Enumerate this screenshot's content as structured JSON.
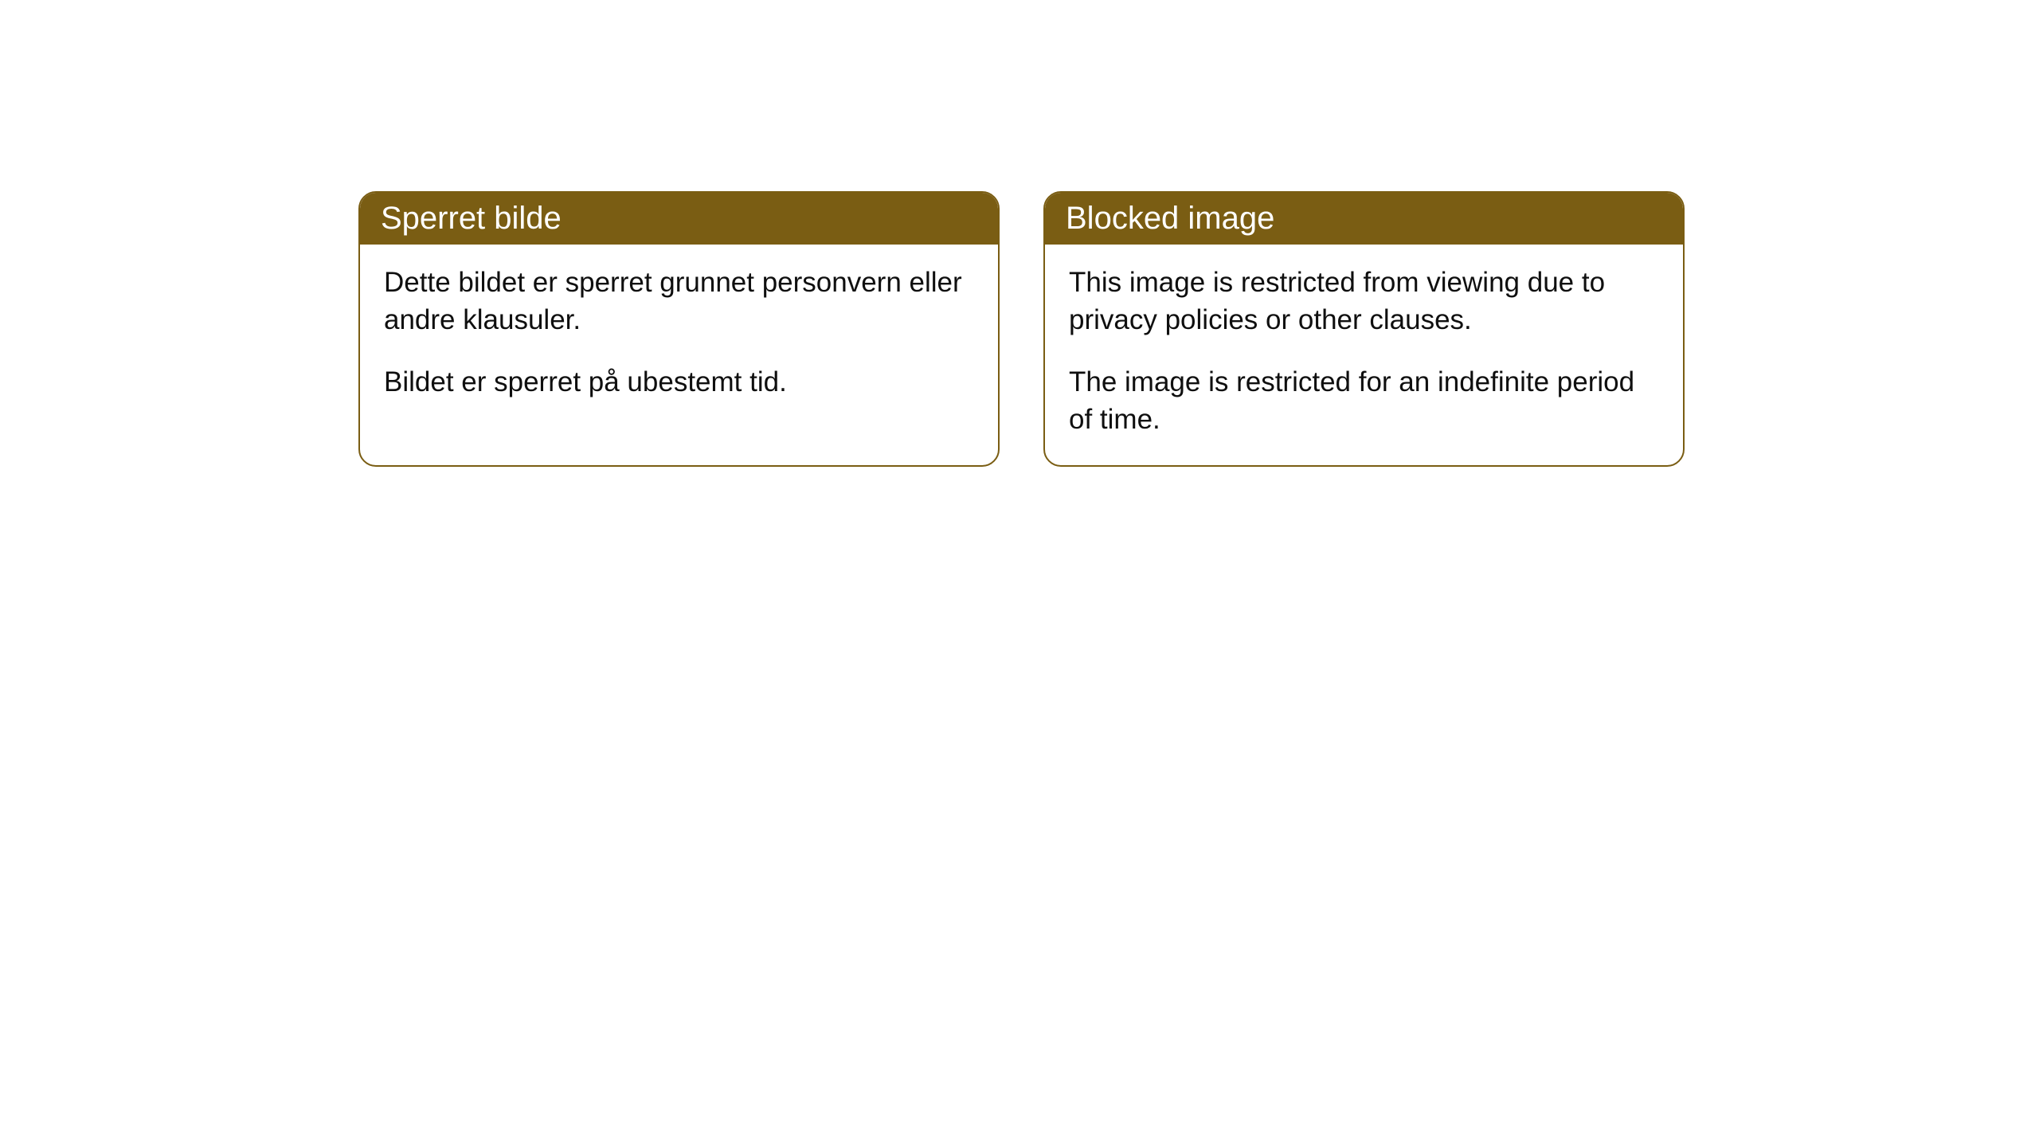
{
  "styling": {
    "header_bg_color": "#7a5d13",
    "header_text_color": "#ffffff",
    "border_color": "#7a5d13",
    "body_text_color": "#0f0f0f",
    "background_color": "#ffffff",
    "border_radius": 22,
    "header_fontsize": 40,
    "body_fontsize": 35
  },
  "notices": [
    {
      "title": "Sperret bilde",
      "paragraph1": "Dette bildet er sperret grunnet personvern eller andre klausuler.",
      "paragraph2": "Bildet er sperret på ubestemt tid."
    },
    {
      "title": "Blocked image",
      "paragraph1": "This image is restricted from viewing due to privacy policies or other clauses.",
      "paragraph2": "The image is restricted for an indefinite period of time."
    }
  ]
}
